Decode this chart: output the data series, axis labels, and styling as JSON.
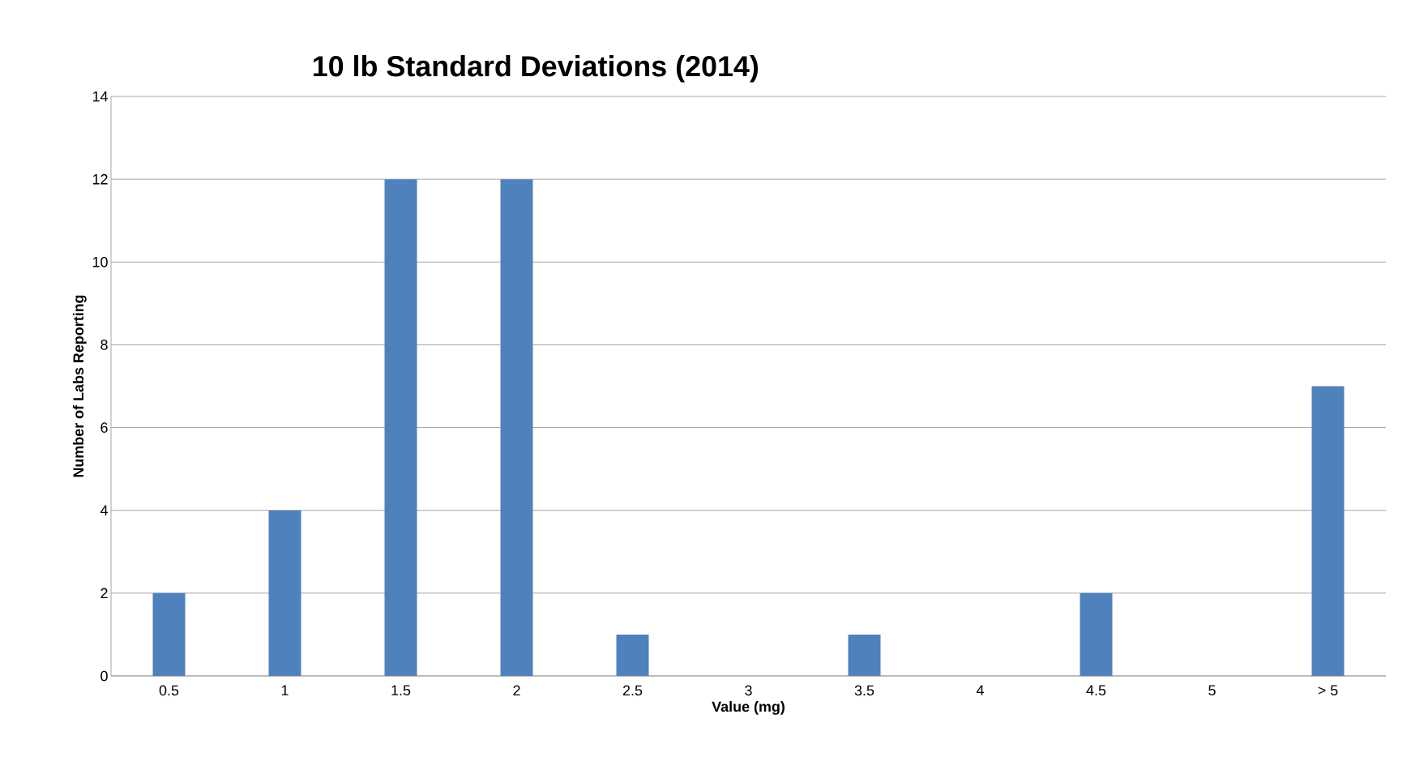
{
  "chart_data": {
    "type": "bar",
    "title": "10 lb Standard Deviations (2014)",
    "xlabel": "Value (mg)",
    "ylabel": "Number of Labs Reporting",
    "categories": [
      "0.5",
      "1",
      "1.5",
      "2",
      "2.5",
      "3",
      "3.5",
      "4",
      "4.5",
      "5",
      "> 5"
    ],
    "values": [
      2,
      4,
      12,
      12,
      1,
      0,
      1,
      0,
      2,
      0,
      7
    ],
    "color": "#4f81bd",
    "ylim": [
      0,
      14
    ],
    "yticks": [
      0,
      2,
      4,
      6,
      8,
      10,
      12,
      14
    ],
    "grid": "y"
  }
}
